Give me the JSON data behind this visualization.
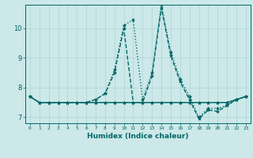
{
  "xlabel": "Humidex (Indice chaleur)",
  "background_color": "#cce8e8",
  "grid_color": "#b0d4d4",
  "line_color": "#006666",
  "xlim": [
    -0.5,
    23.5
  ],
  "ylim": [
    6.8,
    10.8
  ],
  "xticks": [
    0,
    1,
    2,
    3,
    4,
    5,
    6,
    7,
    8,
    9,
    10,
    11,
    12,
    13,
    14,
    15,
    16,
    17,
    18,
    19,
    20,
    21,
    22,
    23
  ],
  "yticks": [
    7,
    8,
    9,
    10
  ],
  "series": [
    {
      "x": [
        0,
        1,
        2,
        3,
        4,
        5,
        6,
        7,
        8,
        9,
        10,
        11,
        12,
        13,
        14,
        15,
        16,
        17,
        18,
        19,
        20,
        21,
        22,
        23
      ],
      "y": [
        7.7,
        7.5,
        7.5,
        7.5,
        7.5,
        7.5,
        7.5,
        7.6,
        7.8,
        8.6,
        10.1,
        10.3,
        7.6,
        8.5,
        10.8,
        9.2,
        8.3,
        7.7,
        7.0,
        7.3,
        7.3,
        7.4,
        7.6,
        7.7
      ],
      "style": "dotted",
      "linewidth": 1.0,
      "marker": "*",
      "markersize": 3
    },
    {
      "x": [
        0,
        1,
        2,
        3,
        4,
        5,
        6,
        7,
        8,
        9,
        10,
        11,
        12,
        13,
        14,
        15,
        16,
        17,
        18,
        19,
        20,
        21,
        22,
        23
      ],
      "y": [
        7.7,
        7.5,
        7.5,
        7.5,
        7.5,
        7.5,
        7.5,
        7.6,
        7.8,
        8.5,
        10.0,
        7.5,
        7.5,
        8.4,
        10.7,
        9.1,
        8.2,
        7.6,
        6.95,
        7.25,
        7.2,
        7.4,
        7.6,
        7.7
      ],
      "style": "dashed",
      "linewidth": 1.0,
      "marker": "*",
      "markersize": 3
    },
    {
      "x": [
        0,
        1,
        2,
        3,
        4,
        5,
        6,
        7,
        8,
        9,
        10,
        11,
        12,
        13,
        14,
        15,
        16,
        17,
        18,
        19,
        20,
        21,
        22,
        23
      ],
      "y": [
        7.7,
        7.5,
        7.5,
        7.5,
        7.5,
        7.5,
        7.5,
        7.5,
        7.5,
        7.5,
        7.5,
        7.5,
        7.5,
        7.5,
        7.5,
        7.5,
        7.5,
        7.5,
        7.5,
        7.5,
        7.5,
        7.5,
        7.6,
        7.7
      ],
      "style": "solid",
      "linewidth": 0.8,
      "marker": "*",
      "markersize": 3
    },
    {
      "x": [
        0,
        1,
        2,
        3,
        4,
        5,
        6,
        7,
        8,
        9,
        10,
        11,
        12,
        13,
        14,
        15,
        16,
        17,
        18,
        19,
        20,
        21,
        22,
        23
      ],
      "y": [
        7.7,
        7.5,
        7.5,
        7.5,
        7.5,
        7.5,
        7.5,
        7.5,
        7.5,
        7.5,
        7.5,
        7.5,
        7.5,
        7.5,
        7.5,
        7.5,
        7.5,
        7.5,
        7.5,
        7.5,
        7.5,
        7.5,
        7.6,
        7.7
      ],
      "style": "solid",
      "linewidth": 0.8,
      "marker": "*",
      "markersize": 3
    }
  ]
}
